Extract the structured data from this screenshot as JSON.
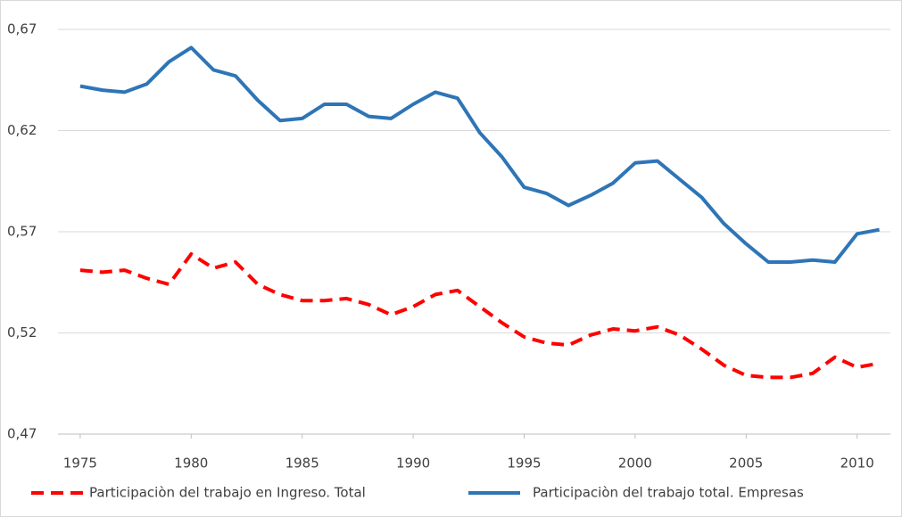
{
  "chart_data": {
    "type": "line",
    "x": [
      1975,
      1976,
      1977,
      1978,
      1979,
      1980,
      1981,
      1982,
      1983,
      1984,
      1985,
      1986,
      1987,
      1988,
      1989,
      1990,
      1991,
      1992,
      1993,
      1994,
      1995,
      1996,
      1997,
      1998,
      1999,
      2000,
      2001,
      2002,
      2003,
      2004,
      2005,
      2006,
      2007,
      2008,
      2009,
      2010,
      2011
    ],
    "series": [
      {
        "name": "Participaciòn del trabajo en Ingreso. Total",
        "color": "#ff0000",
        "dashed": true,
        "values": [
          0.551,
          0.55,
          0.551,
          0.547,
          0.544,
          0.559,
          0.552,
          0.555,
          0.544,
          0.539,
          0.536,
          0.536,
          0.537,
          0.534,
          0.529,
          0.533,
          0.539,
          0.541,
          0.533,
          0.525,
          0.518,
          0.515,
          0.514,
          0.519,
          0.522,
          0.521,
          0.523,
          0.519,
          0.512,
          0.504,
          0.499,
          0.498,
          0.498,
          0.5,
          0.508,
          0.503,
          0.505
        ]
      },
      {
        "name": "Participaciòn del trabajo total. Empresas",
        "color": "#2e75b6",
        "dashed": false,
        "values": [
          0.642,
          0.64,
          0.639,
          0.643,
          0.654,
          0.661,
          0.65,
          0.647,
          0.635,
          0.625,
          0.626,
          0.633,
          0.633,
          0.627,
          0.626,
          0.633,
          0.639,
          0.636,
          0.619,
          0.607,
          0.592,
          0.589,
          0.583,
          0.588,
          0.594,
          0.604,
          0.605,
          0.596,
          0.587,
          0.574,
          0.564,
          0.555,
          0.555,
          0.556,
          0.555,
          0.569,
          0.571
        ]
      }
    ],
    "xlim": [
      1974,
      2011.5
    ],
    "xticks": [
      1975,
      1980,
      1985,
      1990,
      1995,
      2000,
      2005,
      2010
    ],
    "ylim": [
      0.47,
      0.67
    ],
    "yticks": [
      {
        "value": 0.47,
        "label": "0,47"
      },
      {
        "value": 0.52,
        "label": "0,52"
      },
      {
        "value": 0.57,
        "label": "0,57"
      },
      {
        "value": 0.62,
        "label": "0,62"
      },
      {
        "value": 0.67,
        "label": "0,67"
      }
    ],
    "grid": true,
    "legend": "bottom"
  }
}
